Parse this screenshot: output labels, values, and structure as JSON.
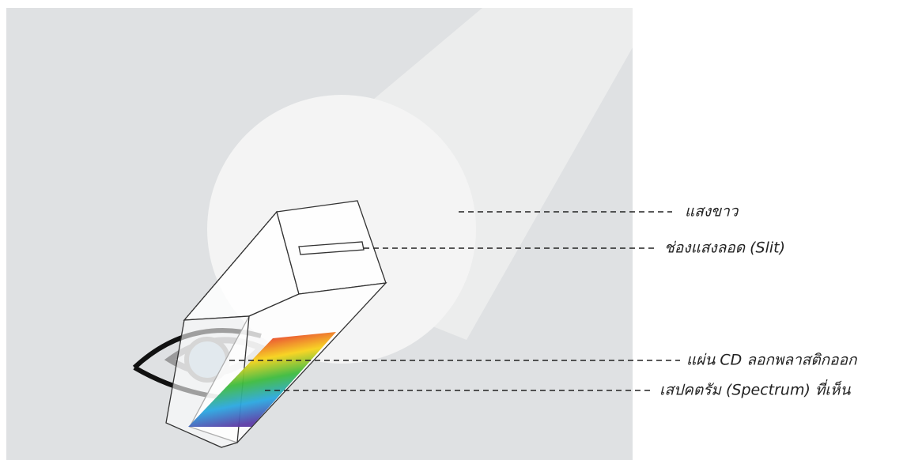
{
  "labels": [
    {
      "text": "แสงขาว"
    },
    {
      "text": "ช่องแสงลอด (Slit)"
    },
    {
      "text": "แผ่น CD ลอกพลาสติกออก"
    },
    {
      "text": "เสปคตรัม (Spectrum) ที่เห็น"
    }
  ]
}
